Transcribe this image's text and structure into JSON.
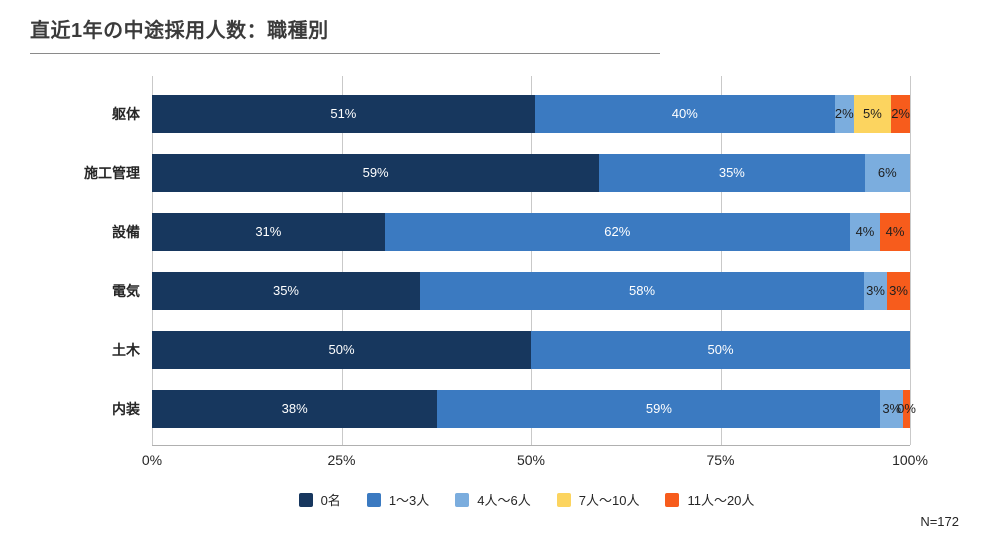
{
  "title": "直近1年の中途採用人数：職種別",
  "note": "N=172",
  "legend": [
    {
      "label": "0名",
      "color": "#17375e"
    },
    {
      "label": "1〜3人",
      "color": "#3b7ac1"
    },
    {
      "label": "4人〜6人",
      "color": "#7badde"
    },
    {
      "label": "7人〜10人",
      "color": "#fcd45f"
    },
    {
      "label": "11人〜20人",
      "color": "#f75c1c"
    }
  ],
  "chart_data": {
    "type": "bar",
    "orientation": "horizontal-stacked",
    "title": "直近1年の中途採用人数：職種別",
    "categories": [
      "躯体",
      "施工管理",
      "設備",
      "電気",
      "土木",
      "内装"
    ],
    "series_names": [
      "0名",
      "1〜3人",
      "4人〜6人",
      "7人〜10人",
      "11人〜20人"
    ],
    "xlim": [
      0,
      100
    ],
    "x_ticks": [
      {
        "label": "0%",
        "pos": 0
      },
      {
        "label": "25%",
        "pos": 25
      },
      {
        "label": "50%",
        "pos": 50
      },
      {
        "label": "75%",
        "pos": 75
      },
      {
        "label": "100%",
        "pos": 100
      }
    ],
    "grid": true,
    "legend_position": "bottom",
    "rows": [
      {
        "category": "躯体",
        "segments": [
          {
            "series": 0,
            "value": 51,
            "label": "51%"
          },
          {
            "series": 1,
            "value": 40,
            "label": "40%"
          },
          {
            "series": 2,
            "value": 2,
            "label": "2%"
          },
          {
            "series": 3,
            "value": 5,
            "label": "5%"
          },
          {
            "series": 4,
            "value": 2,
            "label": "2%"
          }
        ]
      },
      {
        "category": "施工管理",
        "segments": [
          {
            "series": 0,
            "value": 59,
            "label": "59%"
          },
          {
            "series": 1,
            "value": 35,
            "label": "35%"
          },
          {
            "series": 2,
            "value": 6,
            "label": "6%"
          }
        ]
      },
      {
        "category": "設備",
        "segments": [
          {
            "series": 0,
            "value": 31,
            "label": "31%"
          },
          {
            "series": 1,
            "value": 62,
            "label": "62%"
          },
          {
            "series": 2,
            "value": 4,
            "label": "4%"
          },
          {
            "series": 4,
            "value": 4,
            "label": "4%"
          }
        ]
      },
      {
        "category": "電気",
        "segments": [
          {
            "series": 0,
            "value": 35,
            "label": "35%"
          },
          {
            "series": 1,
            "value": 58,
            "label": "58%"
          },
          {
            "series": 2,
            "value": 3,
            "label": "3%"
          },
          {
            "series": 4,
            "value": 3,
            "label": "3%"
          }
        ]
      },
      {
        "category": "土木",
        "segments": [
          {
            "series": 0,
            "value": 50,
            "label": "50%"
          },
          {
            "series": 1,
            "value": 50,
            "label": "50%"
          }
        ]
      },
      {
        "category": "内装",
        "segments": [
          {
            "series": 0,
            "value": 38,
            "label": "38%"
          },
          {
            "series": 1,
            "value": 59,
            "label": "59%"
          },
          {
            "series": 2,
            "value": 3,
            "label": "3%"
          },
          {
            "series": 4,
            "value": 0,
            "label": "0%"
          }
        ]
      }
    ]
  }
}
